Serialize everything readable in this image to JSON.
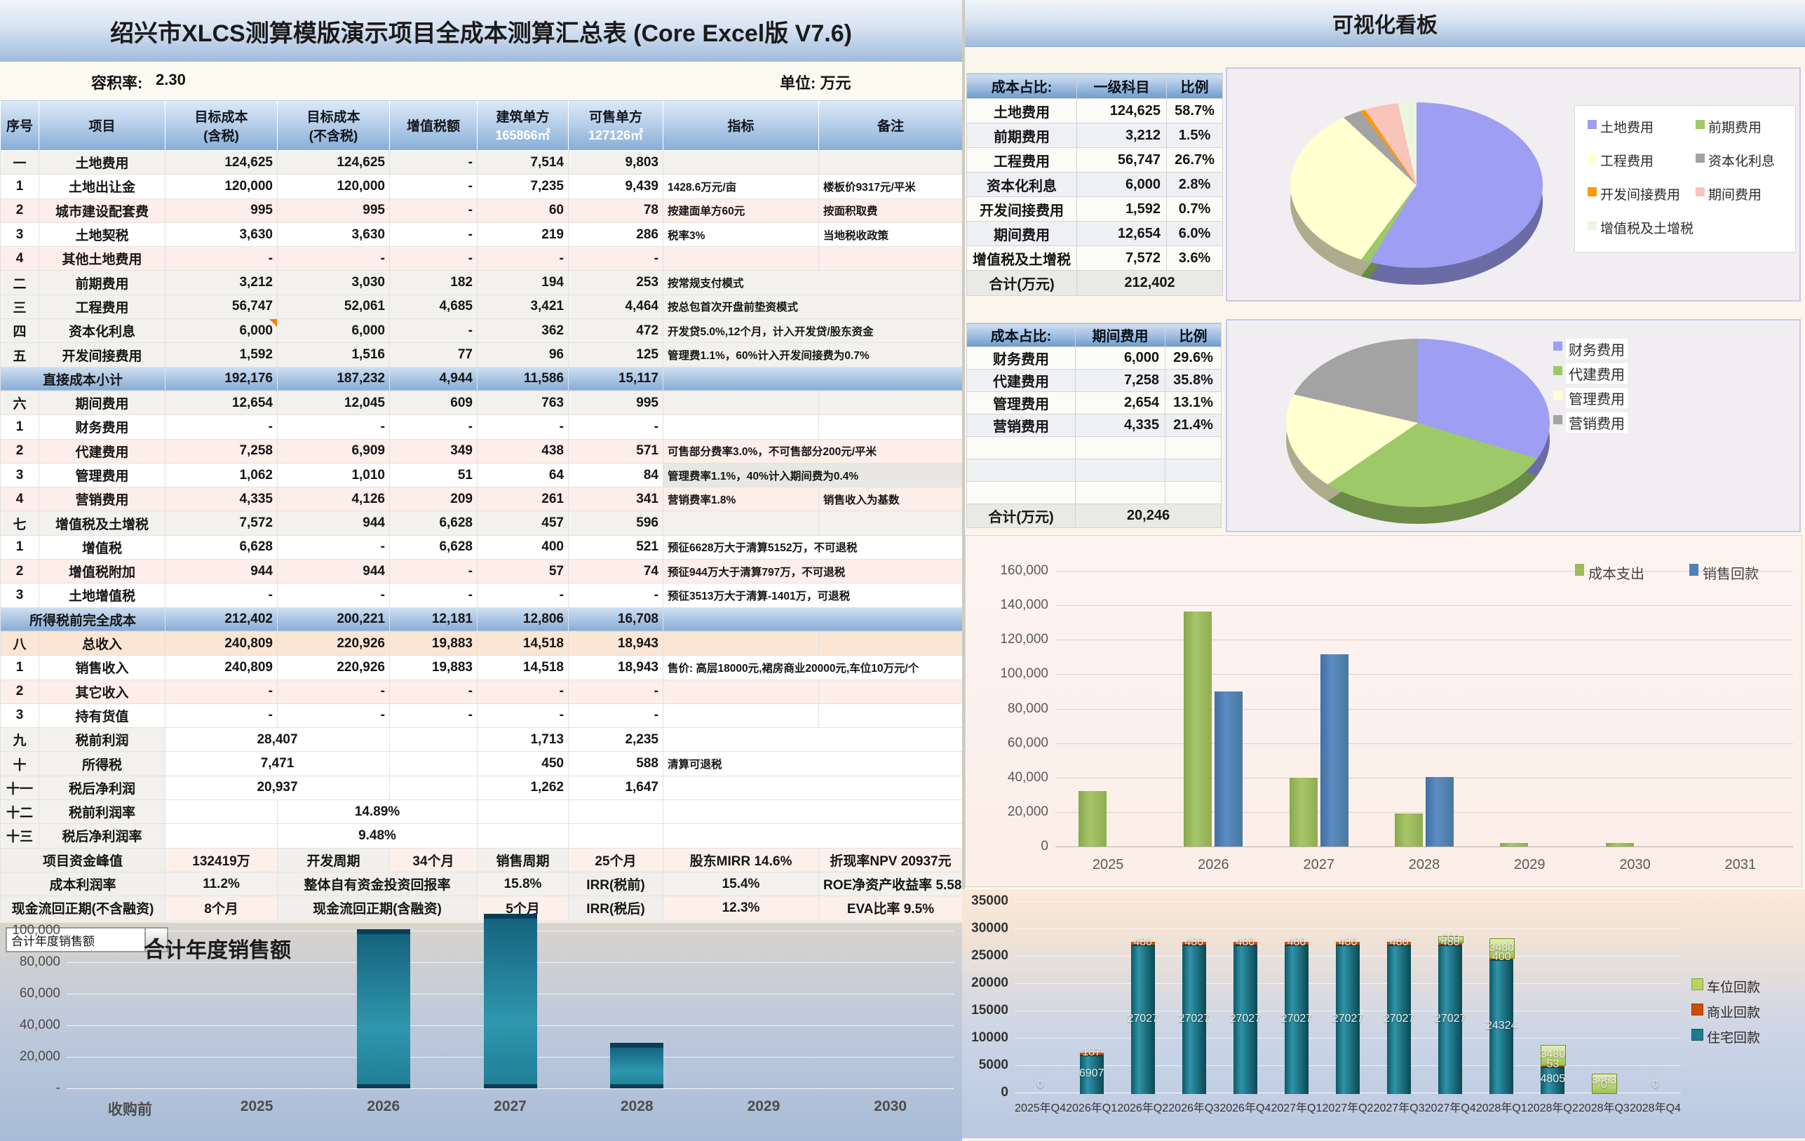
{
  "left": {
    "title": "绍兴市XLCS测算模版演示项目全成本测算汇总表 (Core Excel版 V7.6)",
    "far_label": "容积率:",
    "far_value": "2.30",
    "unit_label": "单位: 万元",
    "header": {
      "c0": "序号",
      "c1": "项目",
      "c2a": "目标成本",
      "c2b": "(含税)",
      "c3a": "目标成本",
      "c3b": "(不含税)",
      "c4": "增值税额",
      "c5a": "建筑单方",
      "c5b": "165866㎡",
      "c6a": "可售单方",
      "c6b": "127126㎡",
      "c7": "指标",
      "c8": "备注"
    },
    "rows": [
      {
        "t": "sec",
        "no": "一",
        "name": "土地费用",
        "v": [
          "124,625",
          "124,625",
          "-",
          "7,514",
          "9,803"
        ],
        "ind": "",
        "note": ""
      },
      {
        "t": "sub",
        "bg": "w",
        "no": "1",
        "name": "土地出让金",
        "v": [
          "120,000",
          "120,000",
          "-",
          "7,235",
          "9,439"
        ],
        "ind": "1428.6万元/亩",
        "note": "楼板价9317元/平米"
      },
      {
        "t": "sub",
        "bg": "p",
        "no": "2",
        "name": "城市建设配套费",
        "v": [
          "995",
          "995",
          "-",
          "60",
          "78"
        ],
        "ind": "按建面单方60元",
        "note": "按面积取费"
      },
      {
        "t": "sub",
        "bg": "w",
        "no": "3",
        "name": "土地契税",
        "v": [
          "3,630",
          "3,630",
          "-",
          "219",
          "286"
        ],
        "ind": "税率3%",
        "note": "当地税收政策"
      },
      {
        "t": "sub",
        "bg": "p",
        "no": "4",
        "name": "其他土地费用",
        "v": [
          "-",
          "-",
          "-",
          "-",
          "-"
        ],
        "ind": "",
        "note": ""
      },
      {
        "t": "sec",
        "no": "二",
        "name": "前期费用",
        "v": [
          "3,212",
          "3,030",
          "182",
          "194",
          "253"
        ],
        "ind": "按常规支付模式",
        "span": true
      },
      {
        "t": "sec",
        "no": "三",
        "name": "工程费用",
        "v": [
          "56,747",
          "52,061",
          "4,685",
          "3,421",
          "4,464"
        ],
        "ind": "按总包首次开盘前垫资模式",
        "span": true
      },
      {
        "t": "sec",
        "no": "四",
        "name": "资本化利息",
        "v": [
          "6,000",
          "6,000",
          "-",
          "362",
          "472"
        ],
        "ind": "开发贷5.0%,12个月，计入开发贷/股东资金",
        "span": true,
        "mark": true
      },
      {
        "t": "sec",
        "no": "五",
        "name": "开发间接费用",
        "v": [
          "1,592",
          "1,516",
          "77",
          "96",
          "125"
        ],
        "ind": "管理费1.1%，60%计入开发间接费为0.7%",
        "span": true
      },
      {
        "t": "tot",
        "name": "直接成本小计",
        "v": [
          "192,176",
          "187,232",
          "4,944",
          "11,586",
          "15,117"
        ]
      },
      {
        "t": "sec",
        "no": "六",
        "name": "期间费用",
        "v": [
          "12,654",
          "12,045",
          "609",
          "763",
          "995"
        ],
        "ind": "",
        "note": ""
      },
      {
        "t": "sub",
        "bg": "w",
        "no": "1",
        "name": "财务费用",
        "v": [
          "-",
          "-",
          "-",
          "-",
          "-"
        ],
        "ind": "",
        "note": ""
      },
      {
        "t": "sub",
        "bg": "p",
        "no": "2",
        "name": "代建费用",
        "v": [
          "7,258",
          "6,909",
          "349",
          "438",
          "571"
        ],
        "ind": "可售部分费率3.0%，不可售部分200元/平米",
        "span": true
      },
      {
        "t": "sub",
        "bg": "w",
        "no": "3",
        "name": "管理费用",
        "v": [
          "1,062",
          "1,010",
          "51",
          "64",
          "84"
        ],
        "ind": "管理费率1.1%，40%计入期间费为0.4%",
        "span": true,
        "indbg": true
      },
      {
        "t": "sub",
        "bg": "p",
        "no": "4",
        "name": "营销费用",
        "v": [
          "4,335",
          "4,126",
          "209",
          "261",
          "341"
        ],
        "ind": "营销费率1.8%",
        "note": "销售收入为基数"
      },
      {
        "t": "sec",
        "no": "七",
        "name": "增值税及土增税",
        "v": [
          "7,572",
          "944",
          "6,628",
          "457",
          "596"
        ],
        "ind": "",
        "note": ""
      },
      {
        "t": "sub",
        "bg": "w",
        "no": "1",
        "name": "增值税",
        "v": [
          "6,628",
          "-",
          "6,628",
          "400",
          "521"
        ],
        "ind": "预征6628万大于清算5152万，不可退税",
        "span": true
      },
      {
        "t": "sub",
        "bg": "p",
        "no": "2",
        "name": "增值税附加",
        "v": [
          "944",
          "944",
          "-",
          "57",
          "74"
        ],
        "ind": "预征944万大于清算797万，不可退税",
        "span": true
      },
      {
        "t": "sub",
        "bg": "w",
        "no": "3",
        "name": "土地增值税",
        "v": [
          "-",
          "-",
          "-",
          "-",
          "-"
        ],
        "ind": "预征3513万大于清算-1401万，可退税",
        "span": true
      },
      {
        "t": "tot",
        "name": "所得税前完全成本",
        "v": [
          "212,402",
          "200,221",
          "12,181",
          "12,806",
          "16,708"
        ]
      },
      {
        "t": "rev",
        "no": "八",
        "name": "总收入",
        "v": [
          "240,809",
          "220,926",
          "19,883",
          "14,518",
          "18,943"
        ],
        "ind": "",
        "note": ""
      },
      {
        "t": "sub",
        "bg": "w",
        "no": "1",
        "name": "销售收入",
        "v": [
          "240,809",
          "220,926",
          "19,883",
          "14,518",
          "18,943"
        ],
        "ind": "售价: 高层18000元,裙房商业20000元,车位10万元/个",
        "span": true
      },
      {
        "t": "sub",
        "bg": "p",
        "no": "2",
        "name": "其它收入",
        "v": [
          "-",
          "-",
          "-",
          "-",
          "-"
        ],
        "ind": "",
        "note": ""
      },
      {
        "t": "sub",
        "bg": "w",
        "no": "3",
        "name": "持有货值",
        "v": [
          "-",
          "-",
          "-",
          "-",
          "-"
        ],
        "ind": "",
        "note": ""
      },
      {
        "t": "prof",
        "no": "九",
        "name": "税前利润",
        "big": "28,407",
        "b": "1,713",
        "s": "2,235",
        "ind": ""
      },
      {
        "t": "prof",
        "no": "十",
        "name": "所得税",
        "big": "7,471",
        "b": "450",
        "s": "588",
        "ind": "清算可退税"
      },
      {
        "t": "prof",
        "no": "十一",
        "name": "税后净利润",
        "big": "20,937",
        "b": "1,262",
        "s": "1,647",
        "ind": ""
      },
      {
        "t": "rate",
        "no": "十二",
        "name": "税前利润率",
        "big": "14.89%"
      },
      {
        "t": "rate",
        "no": "十三",
        "name": "税后净利润率",
        "big": "9.48%"
      }
    ],
    "metrics": [
      [
        {
          "t": "项目资金峰值",
          "s": 2
        },
        {
          "t": "132419万",
          "v": 1
        },
        {
          "t": "开发周期"
        },
        {
          "t": "34个月",
          "v": 1
        },
        {
          "t": "销售周期"
        },
        {
          "t": "25个月",
          "v": 1
        },
        {
          "t": "股东MIRR 14.6%",
          "v": 1
        },
        {
          "t": "折现率NPV 20937元",
          "v": 1
        }
      ],
      [
        {
          "t": "成本利润率",
          "s": 2
        },
        {
          "t": "11.2%",
          "v": 1
        },
        {
          "t": "整体自有资金投资回报率",
          "s": 2
        },
        {
          "t": "15.8%",
          "v": 1
        },
        {
          "t": "IRR(税前)"
        },
        {
          "t": "15.4%",
          "v": 1
        },
        {
          "t": "ROE净资产收益率 5.58%",
          "v": 1
        }
      ],
      [
        {
          "t": "现金流回正期(不含融资)",
          "s": 2
        },
        {
          "t": "8个月",
          "v": 1
        },
        {
          "t": "现金流回正期(含融资)",
          "s": 2
        },
        {
          "t": "5个月",
          "v": 1
        },
        {
          "t": "IRR(税后)"
        },
        {
          "t": "12.3%",
          "v": 1
        },
        {
          "t": "EVA比率 9.5%",
          "v": 1
        }
      ]
    ],
    "annual_dropdown_label": "合计年度销售额"
  },
  "right": {
    "title": "可视化看板",
    "cost_table": {
      "h0": "成本占比:",
      "h1": "一级科目",
      "h2": "比例",
      "rows": [
        [
          "土地费用",
          "124,625",
          "58.7%"
        ],
        [
          "前期费用",
          "3,212",
          "1.5%"
        ],
        [
          "工程费用",
          "56,747",
          "26.7%"
        ],
        [
          "资本化利息",
          "6,000",
          "2.8%"
        ],
        [
          "开发间接费用",
          "1,592",
          "0.7%"
        ],
        [
          "期间费用",
          "12,654",
          "6.0%"
        ],
        [
          "增值税及土增税",
          "7,572",
          "3.6%"
        ]
      ],
      "total_label": "合计(万元)",
      "total_value": "212,402"
    },
    "period_table": {
      "h0": "成本占比:",
      "h1": "期间费用",
      "h2": "比例",
      "rows": [
        [
          "财务费用",
          "6,000",
          "29.6%"
        ],
        [
          "代建费用",
          "7,258",
          "35.8%"
        ],
        [
          "管理费用",
          "2,654",
          "13.1%"
        ],
        [
          "营销费用",
          "4,335",
          "21.4%"
        ],
        [
          "",
          "",
          ""
        ],
        [
          "",
          "",
          ""
        ],
        [
          "",
          "",
          ""
        ]
      ],
      "total_label": "合计(万元)",
      "total_value": "20,246"
    }
  },
  "chart_data": [
    {
      "id": "cost-structure-pie",
      "type": "pie",
      "labels": [
        "土地费用",
        "前期费用",
        "工程费用",
        "资本化利息",
        "开发间接费用",
        "期间费用",
        "增值税及土增税"
      ],
      "values": [
        124625,
        3212,
        56747,
        6000,
        1592,
        12654,
        7572
      ],
      "percents": [
        "58.7%",
        "1.5%",
        "26.7%",
        "2.8%",
        "0.7%",
        "6.0%",
        "3.6%"
      ],
      "colors": [
        "#9e9ef2",
        "#9dc968",
        "#ffffcf",
        "#a3a3a3",
        "#ff9900",
        "#f9c4ba",
        "#eaf6de"
      ],
      "legend_position": "right"
    },
    {
      "id": "period-cost-pie",
      "type": "pie",
      "labels": [
        "财务费用",
        "代建费用",
        "管理费用",
        "营销费用"
      ],
      "values": [
        6000,
        7258,
        2654,
        4335
      ],
      "percents": [
        "29.6%",
        "35.8%",
        "13.1%",
        "21.4%"
      ],
      "colors": [
        "#9e9ef2",
        "#9dc968",
        "#ffffcf",
        "#a3a3a3"
      ],
      "legend_position": "right"
    },
    {
      "id": "cost-vs-sales-bars",
      "type": "bar",
      "categories": [
        "2025",
        "2026",
        "2027",
        "2028",
        "2029",
        "2030",
        "2031"
      ],
      "series": [
        {
          "name": "成本支出",
          "color": "#9bbb59",
          "values": [
            32000,
            136500,
            40000,
            19000,
            2200,
            2200,
            0
          ]
        },
        {
          "name": "销售回款",
          "color": "#4f81bd",
          "values": [
            0,
            90000,
            111500,
            40300,
            0,
            0,
            0
          ]
        }
      ],
      "ylim": [
        0,
        160000
      ],
      "ytick": 20000,
      "grid": true,
      "legend_position": "top-right"
    },
    {
      "id": "annual-sales-bars",
      "type": "bar",
      "title": "合计年度销售额",
      "categories": [
        "收购前",
        "2025",
        "2026",
        "2027",
        "2028",
        "2029",
        "2030"
      ],
      "values": [
        0,
        0,
        101000,
        110809,
        29000,
        0,
        0
      ],
      "ylim": [
        0,
        100000
      ],
      "ytick": 20000,
      "grid": true,
      "bar_color": "#2e97ad",
      "ytick_labels": [
        "-",
        "20,000",
        "40,000",
        "60,000",
        "80,000",
        "100,000"
      ]
    },
    {
      "id": "quarterly-collection-stacked",
      "type": "bar",
      "categories": [
        "2025年Q4",
        "2026年Q1",
        "2026年Q2",
        "2026年Q3",
        "2026年Q4",
        "2027年Q1",
        "2027年Q2",
        "2027年Q3",
        "2027年Q4",
        "2028年Q1",
        "2028年Q2",
        "2028年Q3",
        "2028年Q4"
      ],
      "series": [
        {
          "name": "住宅回款",
          "color": "#1f7a8c",
          "values": [
            0,
            6907,
            27027,
            27027,
            27027,
            27027,
            27027,
            27027,
            27027,
            24324,
            4805,
            0,
            0
          ]
        },
        {
          "name": "商业回款",
          "color": "#cc4e00",
          "values": [
            0,
            187,
            480,
            480,
            480,
            480,
            480,
            480,
            480,
            400,
            53,
            0,
            0
          ]
        },
        {
          "name": "车位回款",
          "color": "#b9d45e",
          "values": [
            0,
            0,
            0,
            0,
            0,
            0,
            0,
            0,
            550,
            3480,
            3480,
            3463,
            0
          ]
        }
      ],
      "ylim": [
        0,
        35000
      ],
      "ytick": 5000,
      "grid": true,
      "legend_position": "right",
      "data_labels": true
    }
  ]
}
